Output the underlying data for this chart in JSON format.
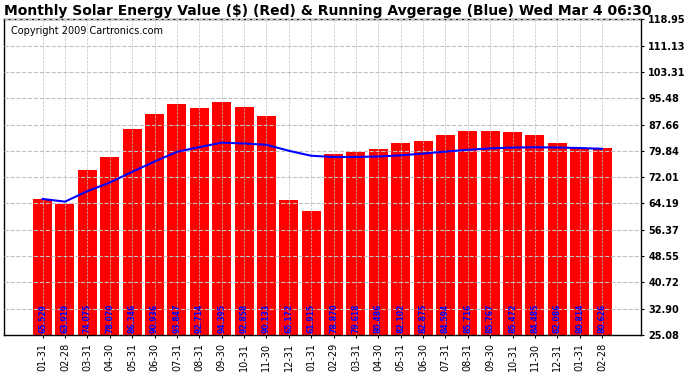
{
  "title": "Monthly Solar Energy Value ($) (Red) & Running Avgerage (Blue) Wed Mar 4 06:30",
  "copyright": "Copyright 2009 Cartronics.com",
  "categories": [
    "01-31",
    "02-28",
    "03-31",
    "04-30",
    "05-31",
    "06-30",
    "07-31",
    "08-31",
    "09-30",
    "10-31",
    "11-30",
    "12-31",
    "01-31",
    "02-29",
    "03-31",
    "04-30",
    "05-31",
    "06-30",
    "07-31",
    "08-31",
    "09-30",
    "10-31",
    "11-30",
    "12-31",
    "01-31",
    "02-28"
  ],
  "bar_values": [
    65.529,
    63.919,
    74.075,
    78.07,
    86.346,
    90.936,
    93.847,
    92.714,
    94.395,
    92.858,
    90.133,
    65.172,
    61.915,
    78.87,
    79.618,
    80.486,
    82.102,
    82.875,
    84.594,
    85.716,
    85.767,
    85.472,
    84.485,
    82.086,
    80.814,
    80.626
  ],
  "running_avg": [
    65.529,
    64.724,
    67.841,
    70.398,
    73.588,
    76.646,
    79.532,
    80.93,
    82.27,
    82.028,
    81.635,
    79.861,
    78.377,
    78.007,
    78.019,
    78.159,
    78.505,
    79.018,
    79.614,
    80.147,
    80.568,
    80.803,
    80.895,
    80.826,
    80.665,
    80.449
  ],
  "bar_color": "#ff0000",
  "line_color": "#0000ff",
  "background_color": "#ffffff",
  "plot_bg_color": "#ffffff",
  "grid_color": "#c0c0c0",
  "yticks": [
    25.08,
    32.9,
    40.72,
    48.55,
    56.37,
    64.19,
    72.01,
    79.84,
    87.66,
    95.48,
    103.31,
    111.13,
    118.95
  ],
  "ylim_min": 25.08,
  "ylim_max": 118.95,
  "title_fontsize": 10,
  "copyright_fontsize": 7,
  "bar_label_fontsize": 5.5,
  "tick_fontsize": 7,
  "line_width": 1.5
}
